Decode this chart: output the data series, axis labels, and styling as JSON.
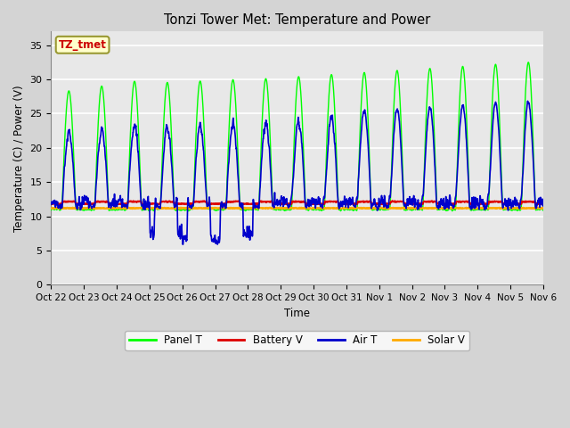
{
  "title": "Tonzi Tower Met: Temperature and Power",
  "xlabel": "Time",
  "ylabel": "Temperature (C) / Power (V)",
  "ylim": [
    0,
    37
  ],
  "yticks": [
    0,
    5,
    10,
    15,
    20,
    25,
    30,
    35
  ],
  "plot_bg_color": "#e8e8e8",
  "fig_bg_color": "#d4d4d4",
  "annotation_text": "TZ_tmet",
  "annotation_color": "#cc0000",
  "annotation_bg": "#ffffcc",
  "annotation_edge": "#999933",
  "line_colors": {
    "panel_t": "#00ff00",
    "battery_v": "#dd0000",
    "air_t": "#0000cc",
    "solar_v": "#ffaa00"
  },
  "legend_labels": [
    "Panel T",
    "Battery V",
    "Air T",
    "Solar V"
  ],
  "xtick_labels": [
    "Oct 22",
    "Oct 23",
    "Oct 24",
    "Oct 25",
    "Oct 26",
    "Oct 27",
    "Oct 28",
    "Oct 29",
    "Oct 30",
    "Oct 31",
    "Nov 1",
    "Nov 2",
    "Nov 3",
    "Nov 4",
    "Nov 5",
    "Nov 6"
  ],
  "n_days": 15,
  "points_per_day": 144
}
